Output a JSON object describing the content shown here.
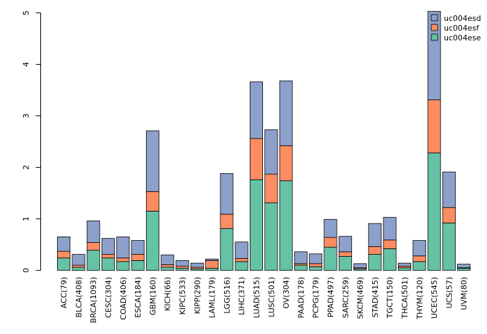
{
  "chart_data": {
    "type": "bar",
    "stacked": true,
    "title": "",
    "xlabel": "",
    "ylabel": "",
    "ylim": [
      0,
      5
    ],
    "yticks": [
      0,
      1,
      2,
      3,
      4,
      5
    ],
    "ytick_labels": [
      "0",
      "1",
      "2",
      "3",
      "4",
      "5"
    ],
    "legend_position": "top-right",
    "categories": [
      "ACC(79)",
      "BLCA(408)",
      "BRCA(1093)",
      "CESC(304)",
      "COAD(406)",
      "ESCA(184)",
      "GBM(160)",
      "KICH(66)",
      "KIPC(533)",
      "KIPP(290)",
      "LAML(179)",
      "LGG(516)",
      "LIHC(371)",
      "LUAD(515)",
      "LUSC(501)",
      "OV(304)",
      "PAAD(178)",
      "PCPG(179)",
      "PPAD(497)",
      "SARC(259)",
      "SKCM(469)",
      "STAD(415)",
      "TGCT(150)",
      "THCA(501)",
      "THYM(120)",
      "UCEC(545)",
      "UCS(57)",
      "UVM(80)"
    ],
    "series": [
      {
        "name": "uc004ese",
        "color": "#66c2a5",
        "values": [
          0.24,
          0.06,
          0.39,
          0.24,
          0.17,
          0.19,
          1.15,
          0.06,
          0.04,
          0.03,
          0.04,
          0.81,
          0.17,
          1.76,
          1.31,
          1.74,
          0.1,
          0.07,
          0.45,
          0.27,
          0.03,
          0.31,
          0.42,
          0.05,
          0.17,
          2.28,
          0.92,
          0.04
        ]
      },
      {
        "name": "uc004esf",
        "color": "#fc8d62",
        "values": [
          0.13,
          0.04,
          0.15,
          0.07,
          0.07,
          0.12,
          0.38,
          0.05,
          0.04,
          0.03,
          0.15,
          0.28,
          0.06,
          0.8,
          0.56,
          0.68,
          0.03,
          0.06,
          0.19,
          0.09,
          0.02,
          0.15,
          0.17,
          0.03,
          0.11,
          1.03,
          0.3,
          0.01
        ]
      },
      {
        "name": "uc004esd",
        "color": "#8da0cb",
        "values": [
          0.28,
          0.21,
          0.42,
          0.31,
          0.41,
          0.27,
          1.18,
          0.19,
          0.11,
          0.08,
          0.03,
          0.79,
          0.32,
          1.1,
          0.86,
          1.26,
          0.23,
          0.19,
          0.35,
          0.3,
          0.08,
          0.45,
          0.44,
          0.06,
          0.3,
          1.72,
          0.69,
          0.07
        ]
      }
    ],
    "legend": [
      "uc004esd",
      "uc004esf",
      "uc004ese"
    ]
  }
}
